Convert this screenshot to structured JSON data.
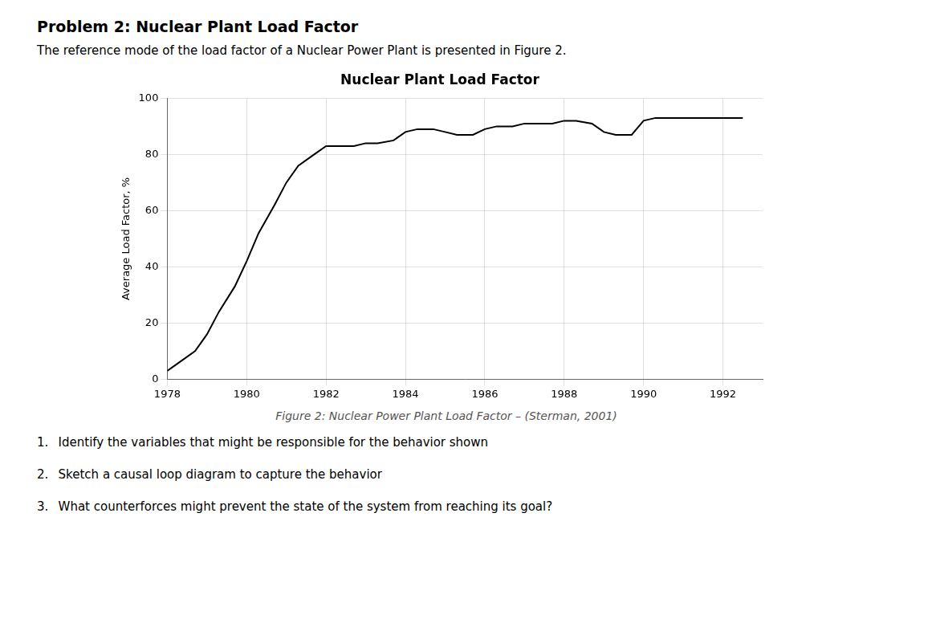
{
  "chart_data": {
    "type": "line",
    "title": "Problem 2: Nuclear Plant Load Factor",
    "subtitle": "The reference mode of the load factor of a Nuclear Power Plant is presented in Figure 2.",
    "chart_title": "Nuclear Plant Load Factor",
    "ylabel": "Average Load Factor, %",
    "caption": "Figure 2: Nuclear Power Plant Load Factor – (Sterman, 2001)",
    "questions": [
      "1.  Identify the variables that might be responsible for the behavior shown",
      "2.  Sketch a causal loop diagram to capture the behavior",
      "3.  What counterforces might prevent the state of the system from reaching its goal?"
    ],
    "x": [
      1978,
      1978.3,
      1978.7,
      1979.0,
      1979.3,
      1979.7,
      1980.0,
      1980.3,
      1980.7,
      1981.0,
      1981.3,
      1981.7,
      1982.0,
      1982.3,
      1982.7,
      1983.0,
      1983.3,
      1983.7,
      1984.0,
      1984.3,
      1984.7,
      1985.0,
      1985.3,
      1985.7,
      1986.0,
      1986.3,
      1986.7,
      1987.0,
      1987.3,
      1987.7,
      1988.0,
      1988.3,
      1988.7,
      1989.0,
      1989.3,
      1989.7,
      1990.0,
      1990.3,
      1990.7,
      1991.0,
      1991.3,
      1991.7,
      1992.0,
      1992.5
    ],
    "values": [
      3,
      6,
      10,
      16,
      24,
      33,
      42,
      52,
      62,
      70,
      76,
      80,
      83,
      83,
      83,
      84,
      84,
      85,
      88,
      89,
      89,
      88,
      87,
      87,
      89,
      90,
      90,
      91,
      91,
      91,
      92,
      92,
      91,
      88,
      87,
      87,
      92,
      93,
      93,
      93,
      93,
      93,
      93,
      93
    ],
    "color": "#000000",
    "xlim": [
      1978,
      1993
    ],
    "ylim": [
      0,
      100
    ],
    "xticks": [
      1978,
      1980,
      1982,
      1984,
      1986,
      1988,
      1990,
      1992
    ],
    "yticks": [
      0,
      20,
      40,
      60,
      80,
      100
    ],
    "grid": true
  }
}
